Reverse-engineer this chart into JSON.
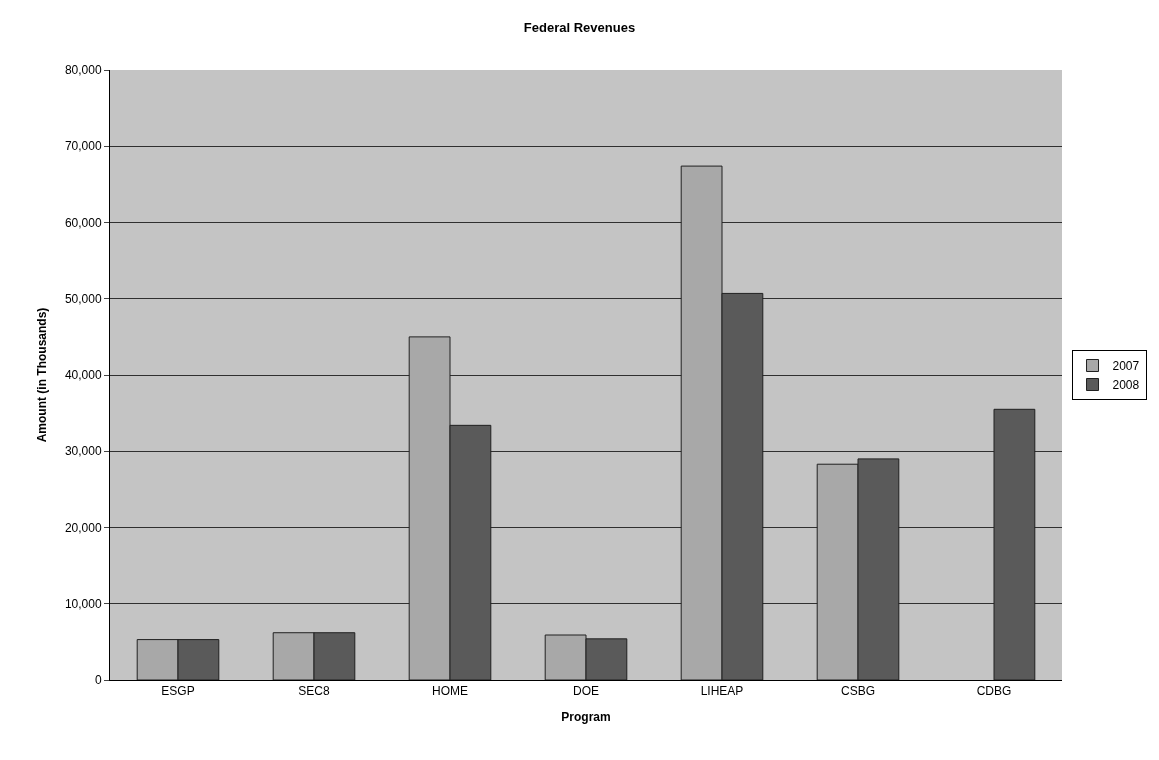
{
  "chart_data": {
    "type": "bar",
    "title": "Federal Revenues",
    "xlabel": "Program",
    "ylabel": "Amount (in Thousands)",
    "categories": [
      "ESGP",
      "SEC8",
      "HOME",
      "DOE",
      "LIHEAP",
      "CSBG",
      "CDBG"
    ],
    "series": [
      {
        "name": "2007",
        "color": "#a8a8a8",
        "values": [
          5300,
          6200,
          45000,
          5900,
          67400,
          28300,
          null
        ]
      },
      {
        "name": "2008",
        "color": "#5a5a5a",
        "values": [
          5300,
          6200,
          33400,
          5400,
          50700,
          29000,
          35500
        ]
      }
    ],
    "ylim": [
      0,
      80000
    ],
    "yticks": [
      {
        "value": 0,
        "label": "0"
      },
      {
        "value": 10000,
        "label": "10,000"
      },
      {
        "value": 20000,
        "label": "20,000"
      },
      {
        "value": 30000,
        "label": "30,000"
      },
      {
        "value": 40000,
        "label": "40,000"
      },
      {
        "value": 50000,
        "label": "50,000"
      },
      {
        "value": 60000,
        "label": "60,000"
      },
      {
        "value": 70000,
        "label": "70,000"
      },
      {
        "value": 80000,
        "label": "80,000"
      }
    ],
    "grid": "y",
    "legend": "right"
  }
}
